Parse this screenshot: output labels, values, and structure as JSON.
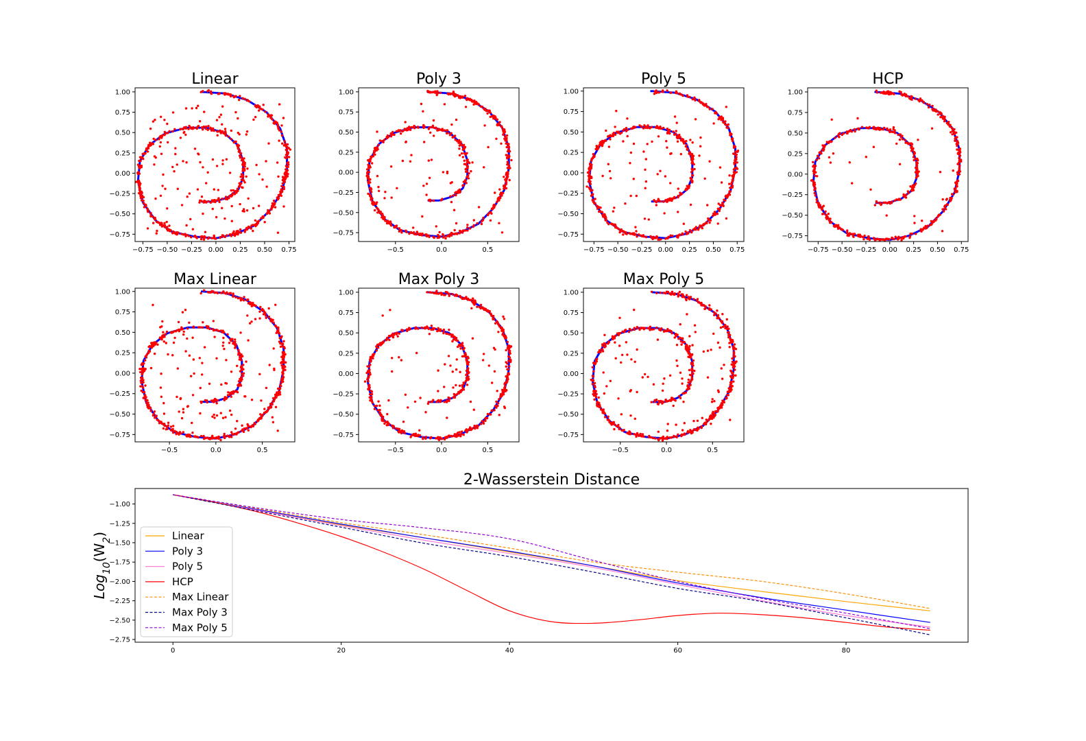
{
  "chart_data": [
    {
      "type": "scatter",
      "title": "Linear",
      "xticks": [
        "−0.75",
        "−0.50",
        "−0.25",
        "0.00",
        "0.25",
        "0.50",
        "0.75"
      ],
      "yticks": [
        "−0.75",
        "−0.50",
        "−0.25",
        "0.00",
        "0.25",
        "0.50",
        "0.75",
        "1.00"
      ],
      "xlim": [
        -0.83,
        0.81
      ],
      "ylim": [
        -0.84,
        1.05
      ],
      "noise": 130,
      "seed": 11
    },
    {
      "type": "scatter",
      "title": "Poly 3",
      "xticks": [
        "−0.5",
        "0.0",
        "0.5"
      ],
      "yticks": [
        "−0.75",
        "−0.50",
        "−0.25",
        "0.00",
        "0.25",
        "0.50",
        "0.75",
        "1.00"
      ],
      "xlim": [
        -0.9,
        0.84
      ],
      "ylim": [
        -0.86,
        1.05
      ],
      "noise": 70,
      "seed": 23
    },
    {
      "type": "scatter",
      "title": "Poly 5",
      "xticks": [
        "−0.75",
        "−0.50",
        "−0.25",
        "0.00",
        "0.25",
        "0.50",
        "0.75"
      ],
      "yticks": [
        "−0.75",
        "−0.50",
        "−0.25",
        "0.00",
        "0.25",
        "0.50",
        "0.75",
        "1.00"
      ],
      "xlim": [
        -0.86,
        0.82
      ],
      "ylim": [
        -0.84,
        1.04
      ],
      "noise": 75,
      "seed": 37
    },
    {
      "type": "scatter",
      "title": "HCP",
      "xticks": [
        "−0.75",
        "−0.50",
        "−0.25",
        "0.00",
        "0.25",
        "0.50",
        "0.75"
      ],
      "yticks": [
        "−0.75",
        "−0.50",
        "−0.25",
        "0.00",
        "0.25",
        "0.50",
        "0.75",
        "1.00"
      ],
      "xlim": [
        -0.86,
        0.82
      ],
      "ylim": [
        -0.82,
        1.05
      ],
      "noise": 30,
      "seed": 41
    },
    {
      "type": "scatter",
      "title": "Max Linear",
      "xticks": [
        "−0.5",
        "0.0",
        "0.5"
      ],
      "yticks": [
        "−0.75",
        "−0.50",
        "−0.25",
        "0.00",
        "0.25",
        "0.50",
        "0.75",
        "1.00"
      ],
      "xlim": [
        -0.87,
        0.85
      ],
      "ylim": [
        -0.84,
        1.04
      ],
      "noise": 120,
      "seed": 53
    },
    {
      "type": "scatter",
      "title": "Max Poly 3",
      "xticks": [
        "−0.5",
        "0.0",
        "0.5"
      ],
      "yticks": [
        "−0.75",
        "−0.50",
        "−0.25",
        "0.00",
        "0.25",
        "0.50",
        "0.75",
        "1.00"
      ],
      "xlim": [
        -0.9,
        0.84
      ],
      "ylim": [
        -0.84,
        1.05
      ],
      "noise": 60,
      "seed": 67
    },
    {
      "type": "scatter",
      "title": "Max Poly 5",
      "xticks": [
        "−0.5",
        "0.0",
        "0.5"
      ],
      "yticks": [
        "−0.75",
        "−0.50",
        "−0.25",
        "0.00",
        "0.25",
        "0.50",
        "0.75",
        "1.00"
      ],
      "xlim": [
        -0.9,
        0.84
      ],
      "ylim": [
        -0.84,
        1.05
      ],
      "noise": 90,
      "seed": 79
    },
    {
      "type": "line",
      "title": "2-Wasserstein Distance",
      "ylabel": "Log10(W2)",
      "ylabel_base": "Log",
      "ylabel_sub": "10",
      "ylabel_open": "(W",
      "ylabel_sub2": "2",
      "ylabel_close": ")",
      "xlim": [
        -4.5,
        94.5
      ],
      "ylim": [
        -2.785,
        -0.8
      ],
      "xticks": [
        0,
        20,
        40,
        60,
        80
      ],
      "yticks": [
        "−1.00",
        "−1.25",
        "−1.50",
        "−1.75",
        "−2.00",
        "−2.25",
        "−2.50",
        "−2.75"
      ],
      "ytick_values": [
        -1.0,
        -1.25,
        -1.5,
        -1.75,
        -2.0,
        -2.25,
        -2.5,
        -2.75
      ],
      "legend_position": "center-left",
      "series": [
        {
          "name": "Linear",
          "color": "#ffa500",
          "dash": "solid",
          "x": [
            0,
            10,
            20,
            30,
            40,
            50,
            60,
            70,
            80,
            90
          ],
          "y": [
            -0.88,
            -1.08,
            -1.27,
            -1.44,
            -1.62,
            -1.8,
            -1.99,
            -2.13,
            -2.26,
            -2.38
          ]
        },
        {
          "name": "Poly 3",
          "color": "#0000ff",
          "dash": "solid",
          "x": [
            0,
            10,
            20,
            30,
            40,
            50,
            60,
            70,
            80,
            90
          ],
          "y": [
            -0.88,
            -1.07,
            -1.26,
            -1.44,
            -1.61,
            -1.8,
            -2.02,
            -2.21,
            -2.37,
            -2.53
          ]
        },
        {
          "name": "Poly 5",
          "color": "#ff7fd8",
          "dash": "solid",
          "x": [
            0,
            10,
            20,
            30,
            40,
            50,
            60,
            70,
            80,
            90
          ],
          "y": [
            -0.88,
            -1.08,
            -1.28,
            -1.47,
            -1.64,
            -1.82,
            -2.04,
            -2.25,
            -2.44,
            -2.59
          ]
        },
        {
          "name": "HCP",
          "color": "#ff0000",
          "dash": "solid",
          "x": [
            0,
            5,
            10,
            15,
            20,
            25,
            30,
            35,
            40,
            45,
            50,
            55,
            60,
            65,
            70,
            75,
            80,
            85,
            90
          ],
          "y": [
            -0.88,
            -0.98,
            -1.1,
            -1.25,
            -1.42,
            -1.62,
            -1.85,
            -2.12,
            -2.38,
            -2.52,
            -2.54,
            -2.5,
            -2.44,
            -2.41,
            -2.43,
            -2.47,
            -2.53,
            -2.59,
            -2.63
          ]
        },
        {
          "name": "Max Linear",
          "color": "#ff8c00",
          "dash": "dashed",
          "x": [
            0,
            10,
            20,
            30,
            40,
            50,
            60,
            70,
            80,
            90
          ],
          "y": [
            -0.88,
            -1.06,
            -1.24,
            -1.4,
            -1.57,
            -1.75,
            -1.88,
            -2.0,
            -2.16,
            -2.35
          ]
        },
        {
          "name": "Max Poly 3",
          "color": "#00008b",
          "dash": "dashed",
          "x": [
            0,
            10,
            20,
            30,
            40,
            50,
            60,
            70,
            80,
            90
          ],
          "y": [
            -0.88,
            -1.09,
            -1.3,
            -1.51,
            -1.68,
            -1.88,
            -2.09,
            -2.26,
            -2.47,
            -2.69
          ]
        },
        {
          "name": "Max Poly 5",
          "color": "#9400d3",
          "dash": "dashed",
          "x": [
            0,
            10,
            20,
            30,
            40,
            50,
            60,
            70,
            80,
            90
          ],
          "y": [
            -0.88,
            -1.05,
            -1.2,
            -1.31,
            -1.45,
            -1.73,
            -2.0,
            -2.22,
            -2.41,
            -2.61
          ]
        }
      ]
    }
  ]
}
